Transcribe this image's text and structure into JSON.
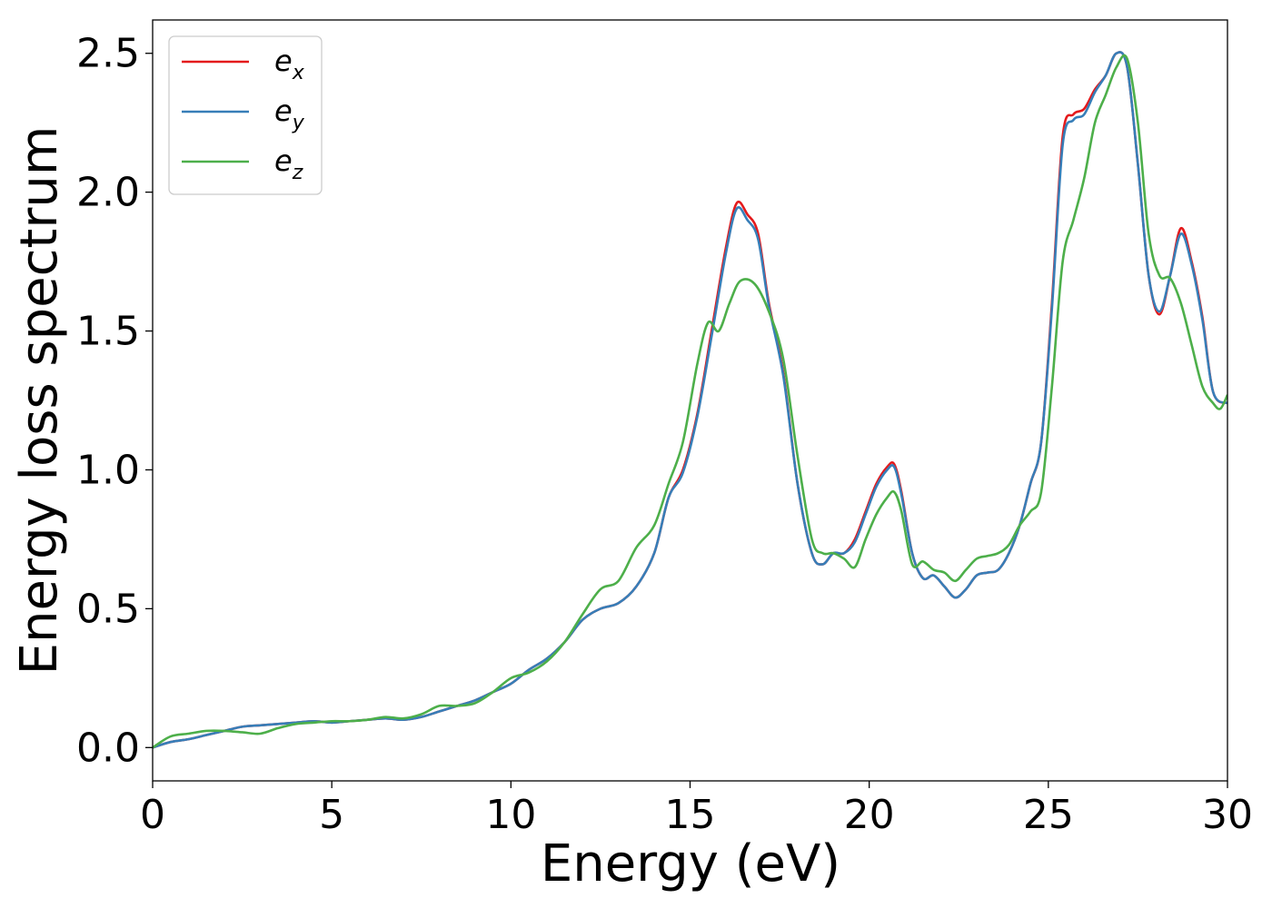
{
  "chart_data": {
    "type": "line",
    "xlabel": "Energy (eV)",
    "ylabel": "Energy loss spectrum",
    "xlim": [
      0,
      30
    ],
    "ylim": [
      -0.12,
      2.62
    ],
    "xticks": [
      0,
      5,
      10,
      15,
      20,
      25,
      30
    ],
    "yticks": [
      0.0,
      0.5,
      1.0,
      1.5,
      2.0,
      2.5
    ],
    "xtick_labels": [
      "0",
      "5",
      "10",
      "15",
      "20",
      "25",
      "30"
    ],
    "ytick_labels": [
      "0.0",
      "0.5",
      "1.0",
      "1.5",
      "2.0",
      "2.5"
    ],
    "grid": false,
    "legend_position": "top-left",
    "series": [
      {
        "name": "e_x",
        "label_base": "e",
        "label_sub": "x",
        "color": "#e41a1c",
        "x": [
          0,
          0.5,
          1,
          1.5,
          2,
          2.5,
          3,
          3.5,
          4,
          4.5,
          5,
          5.5,
          6,
          6.5,
          7,
          7.5,
          8,
          8.5,
          9,
          9.5,
          10,
          10.5,
          11,
          11.5,
          12,
          12.5,
          13,
          13.5,
          14,
          14.4,
          14.8,
          15.2,
          15.6,
          16,
          16.3,
          16.6,
          16.9,
          17.2,
          17.6,
          18,
          18.4,
          18.7,
          19,
          19.3,
          19.6,
          19.9,
          20.2,
          20.5,
          20.7,
          20.9,
          21.2,
          21.5,
          21.8,
          22.1,
          22.4,
          22.7,
          23,
          23.3,
          23.6,
          23.9,
          24.2,
          24.5,
          24.8,
          25.1,
          25.4,
          25.7,
          26,
          26.3,
          26.6,
          26.9,
          27.2,
          27.5,
          27.8,
          28.1,
          28.4,
          28.7,
          29,
          29.3,
          29.6,
          30
        ],
        "y": [
          0.0,
          0.02,
          0.03,
          0.045,
          0.06,
          0.075,
          0.08,
          0.085,
          0.09,
          0.095,
          0.09,
          0.095,
          0.1,
          0.105,
          0.1,
          0.11,
          0.13,
          0.15,
          0.17,
          0.2,
          0.23,
          0.28,
          0.32,
          0.38,
          0.46,
          0.5,
          0.52,
          0.58,
          0.7,
          0.9,
          1.0,
          1.2,
          1.5,
          1.8,
          1.96,
          1.92,
          1.85,
          1.6,
          1.35,
          0.95,
          0.7,
          0.66,
          0.7,
          0.7,
          0.75,
          0.85,
          0.95,
          1.01,
          1.02,
          0.92,
          0.7,
          0.61,
          0.62,
          0.58,
          0.54,
          0.57,
          0.62,
          0.63,
          0.64,
          0.7,
          0.8,
          0.95,
          1.1,
          1.6,
          2.2,
          2.28,
          2.3,
          2.37,
          2.42,
          2.5,
          2.45,
          2.1,
          1.7,
          1.56,
          1.7,
          1.87,
          1.75,
          1.55,
          1.28,
          1.24
        ]
      },
      {
        "name": "e_y",
        "label_base": "e",
        "label_sub": "y",
        "color": "#377eb8",
        "x": [
          0,
          0.5,
          1,
          1.5,
          2,
          2.5,
          3,
          3.5,
          4,
          4.5,
          5,
          5.5,
          6,
          6.5,
          7,
          7.5,
          8,
          8.5,
          9,
          9.5,
          10,
          10.5,
          11,
          11.5,
          12,
          12.5,
          13,
          13.5,
          14,
          14.4,
          14.8,
          15.2,
          15.6,
          16,
          16.3,
          16.6,
          16.9,
          17.2,
          17.6,
          18,
          18.4,
          18.7,
          19,
          19.3,
          19.6,
          19.9,
          20.2,
          20.5,
          20.7,
          20.9,
          21.2,
          21.5,
          21.8,
          22.1,
          22.4,
          22.7,
          23,
          23.3,
          23.6,
          23.9,
          24.2,
          24.5,
          24.8,
          25.1,
          25.4,
          25.7,
          26,
          26.3,
          26.6,
          26.9,
          27.2,
          27.5,
          27.8,
          28.1,
          28.4,
          28.7,
          29,
          29.3,
          29.6,
          30
        ],
        "y": [
          0.0,
          0.02,
          0.03,
          0.045,
          0.06,
          0.075,
          0.08,
          0.085,
          0.09,
          0.095,
          0.09,
          0.095,
          0.1,
          0.105,
          0.1,
          0.11,
          0.13,
          0.15,
          0.17,
          0.2,
          0.23,
          0.28,
          0.32,
          0.38,
          0.46,
          0.5,
          0.52,
          0.58,
          0.7,
          0.9,
          0.99,
          1.19,
          1.48,
          1.78,
          1.94,
          1.9,
          1.83,
          1.59,
          1.34,
          0.95,
          0.7,
          0.66,
          0.7,
          0.7,
          0.74,
          0.84,
          0.94,
          1.0,
          1.01,
          0.91,
          0.7,
          0.61,
          0.62,
          0.58,
          0.54,
          0.57,
          0.62,
          0.63,
          0.64,
          0.7,
          0.8,
          0.95,
          1.1,
          1.58,
          2.17,
          2.26,
          2.28,
          2.36,
          2.42,
          2.5,
          2.45,
          2.1,
          1.7,
          1.57,
          1.7,
          1.85,
          1.74,
          1.54,
          1.28,
          1.24
        ]
      },
      {
        "name": "e_z",
        "label_base": "e",
        "label_sub": "z",
        "color": "#4daf4a",
        "x": [
          0,
          0.5,
          1,
          1.5,
          2,
          2.5,
          3,
          3.5,
          4,
          4.5,
          5,
          5.5,
          6,
          6.5,
          7,
          7.5,
          8,
          8.5,
          9,
          9.5,
          10,
          10.5,
          11,
          11.5,
          12,
          12.5,
          13,
          13.5,
          14,
          14.4,
          14.8,
          15.2,
          15.5,
          15.8,
          16.1,
          16.4,
          16.8,
          17.2,
          17.6,
          18,
          18.4,
          18.7,
          19,
          19.3,
          19.6,
          19.9,
          20.2,
          20.5,
          20.7,
          20.9,
          21.2,
          21.5,
          21.8,
          22.1,
          22.4,
          22.7,
          23,
          23.3,
          23.6,
          23.9,
          24.2,
          24.5,
          24.8,
          25.1,
          25.4,
          25.7,
          26,
          26.3,
          26.6,
          26.9,
          27.2,
          27.5,
          27.8,
          28.1,
          28.4,
          28.7,
          29,
          29.3,
          29.6,
          29.8,
          30
        ],
        "y": [
          0.0,
          0.04,
          0.05,
          0.06,
          0.06,
          0.055,
          0.05,
          0.07,
          0.085,
          0.09,
          0.095,
          0.095,
          0.1,
          0.11,
          0.105,
          0.12,
          0.15,
          0.15,
          0.16,
          0.2,
          0.25,
          0.27,
          0.31,
          0.38,
          0.48,
          0.57,
          0.6,
          0.72,
          0.8,
          0.95,
          1.1,
          1.38,
          1.53,
          1.5,
          1.6,
          1.68,
          1.67,
          1.57,
          1.4,
          1.05,
          0.75,
          0.7,
          0.7,
          0.68,
          0.65,
          0.75,
          0.84,
          0.9,
          0.92,
          0.85,
          0.66,
          0.67,
          0.64,
          0.63,
          0.6,
          0.64,
          0.68,
          0.69,
          0.7,
          0.73,
          0.8,
          0.85,
          0.92,
          1.3,
          1.75,
          1.9,
          2.05,
          2.25,
          2.35,
          2.45,
          2.48,
          2.25,
          1.85,
          1.7,
          1.69,
          1.6,
          1.45,
          1.3,
          1.24,
          1.22,
          1.27
        ]
      }
    ]
  }
}
